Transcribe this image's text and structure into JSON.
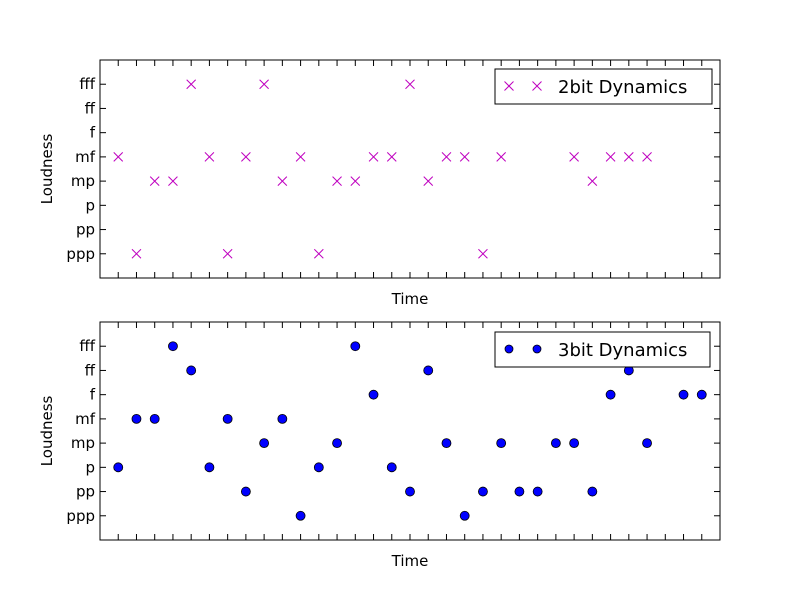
{
  "chart_data": [
    {
      "type": "scatter",
      "xlabel": "Time",
      "ylabel": "Loudness",
      "y_tick_labels": [
        "ppp",
        "pp",
        "p",
        "mp",
        "mf",
        "f",
        "ff",
        "fff"
      ],
      "xlim": [
        0,
        34
      ],
      "ylim": [
        -1,
        8
      ],
      "x_tick_labels_visible": false,
      "grid": false,
      "legend_position": "top-right",
      "series": [
        {
          "name": "2bit Dynamics",
          "marker": "x",
          "color": "#bf00bf",
          "x": [
            1,
            2,
            3,
            4,
            5,
            6,
            7,
            8,
            9,
            10,
            11,
            12,
            13,
            14,
            15,
            16,
            17,
            18,
            19,
            20,
            21,
            22,
            23,
            24,
            25,
            26,
            27,
            28,
            29,
            30,
            31,
            32,
            33
          ],
          "y": [
            4,
            0,
            3,
            3,
            7,
            4,
            0,
            4,
            7,
            3,
            4,
            0,
            3,
            3,
            4,
            4,
            7,
            3,
            4,
            4,
            0,
            4,
            null,
            null,
            null,
            4,
            3,
            4,
            4,
            4,
            null,
            null,
            null
          ]
        }
      ]
    },
    {
      "type": "scatter",
      "xlabel": "Time",
      "ylabel": "Loudness",
      "y_tick_labels": [
        "ppp",
        "pp",
        "p",
        "mp",
        "mf",
        "f",
        "ff",
        "fff"
      ],
      "xlim": [
        0,
        34
      ],
      "ylim": [
        -1,
        8
      ],
      "x_tick_labels_visible": false,
      "grid": false,
      "legend_position": "top-right",
      "series": [
        {
          "name": "3bit Dynamics",
          "marker": "o",
          "color": "#0000ff",
          "x": [
            1,
            2,
            3,
            4,
            5,
            6,
            7,
            8,
            9,
            10,
            11,
            12,
            13,
            14,
            15,
            16,
            17,
            18,
            19,
            20,
            21,
            22,
            23,
            24,
            25,
            26,
            27,
            28,
            29,
            30,
            31,
            32,
            33
          ],
          "y": [
            2,
            4,
            4,
            7,
            6,
            2,
            4,
            1,
            3,
            4,
            0,
            2,
            3,
            7,
            5,
            2,
            1,
            6,
            3,
            0,
            1,
            3,
            1,
            1,
            3,
            3,
            1,
            5,
            6,
            3,
            null,
            5,
            5
          ]
        }
      ]
    }
  ]
}
